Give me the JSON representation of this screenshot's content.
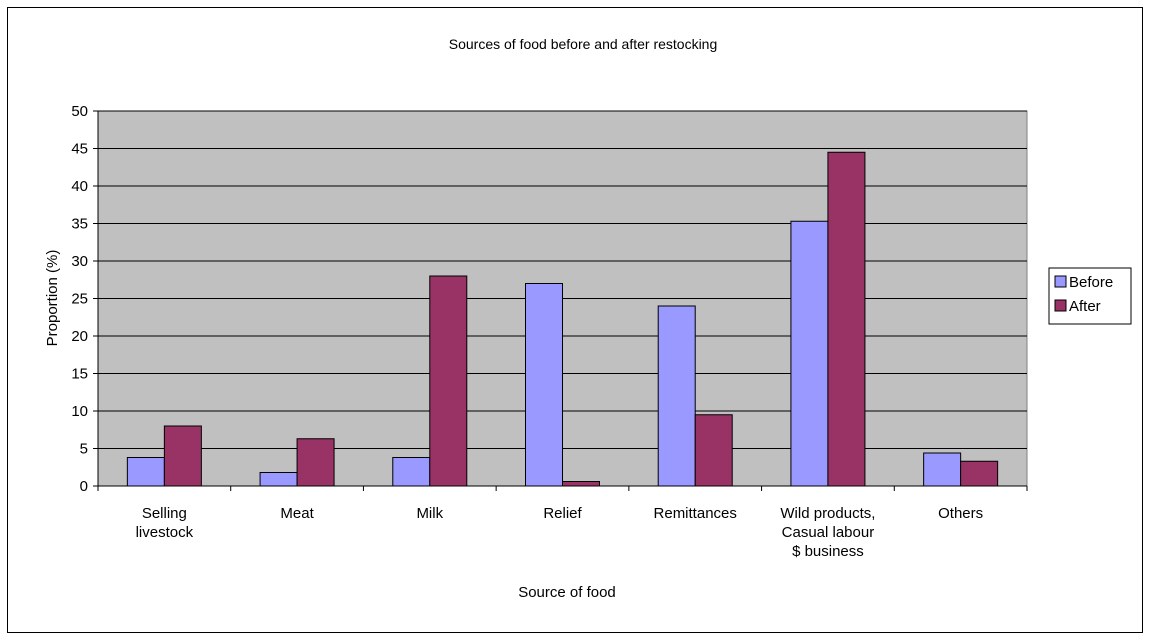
{
  "chart_data": {
    "type": "bar",
    "title": "Sources of food before and after restocking",
    "xlabel": "Source of food",
    "ylabel": "Proportion (%)",
    "ylim": [
      0,
      50
    ],
    "yticks": [
      0,
      5,
      10,
      15,
      20,
      25,
      30,
      35,
      40,
      45,
      50
    ],
    "categories": [
      [
        "Selling",
        "livestock"
      ],
      [
        "Meat"
      ],
      [
        "Milk"
      ],
      [
        "Relief"
      ],
      [
        "Remittances"
      ],
      [
        "Wild products,",
        "Casual labour",
        "$ business"
      ],
      [
        "Others"
      ]
    ],
    "series": [
      {
        "name": "Before",
        "color": "#9999ff",
        "values": [
          3.8,
          1.8,
          3.8,
          27.0,
          24.0,
          35.3,
          4.4
        ]
      },
      {
        "name": "After",
        "color": "#993366",
        "values": [
          8.0,
          6.3,
          28.0,
          0.6,
          9.5,
          44.5,
          3.3
        ]
      }
    ],
    "grid": true,
    "plot_background": "#c0c0c0",
    "legend_position": "right"
  }
}
